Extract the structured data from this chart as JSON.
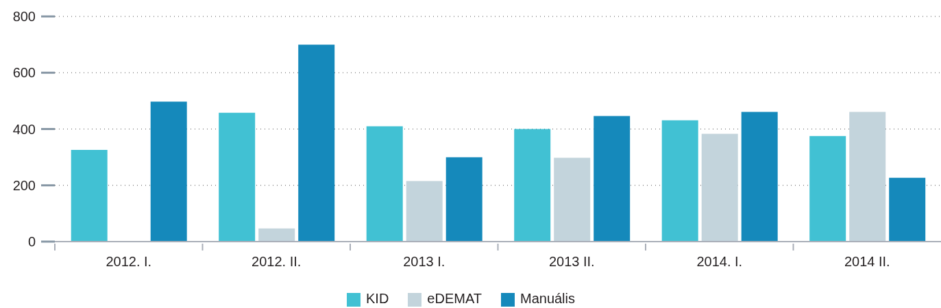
{
  "chart_data": {
    "type": "bar",
    "categories": [
      "2012. I.",
      "2012. II.",
      "2013 I.",
      "2013 II.",
      "2014. I.",
      "2014 II."
    ],
    "series": [
      {
        "name": "KID",
        "color": "#41c1d3",
        "values": [
          326,
          458,
          410,
          400,
          431,
          375
        ]
      },
      {
        "name": "eDEMAT",
        "color": "#c3d4dc",
        "values": [
          null,
          47,
          215,
          298,
          383,
          461
        ]
      },
      {
        "name": "Manuális",
        "color": "#1589bb",
        "values": [
          497,
          700,
          300,
          446,
          461,
          227
        ]
      }
    ],
    "ylim": [
      0,
      800
    ],
    "yticks": [
      0,
      200,
      400,
      600,
      800
    ],
    "grid": "y",
    "legend": "bottom"
  }
}
